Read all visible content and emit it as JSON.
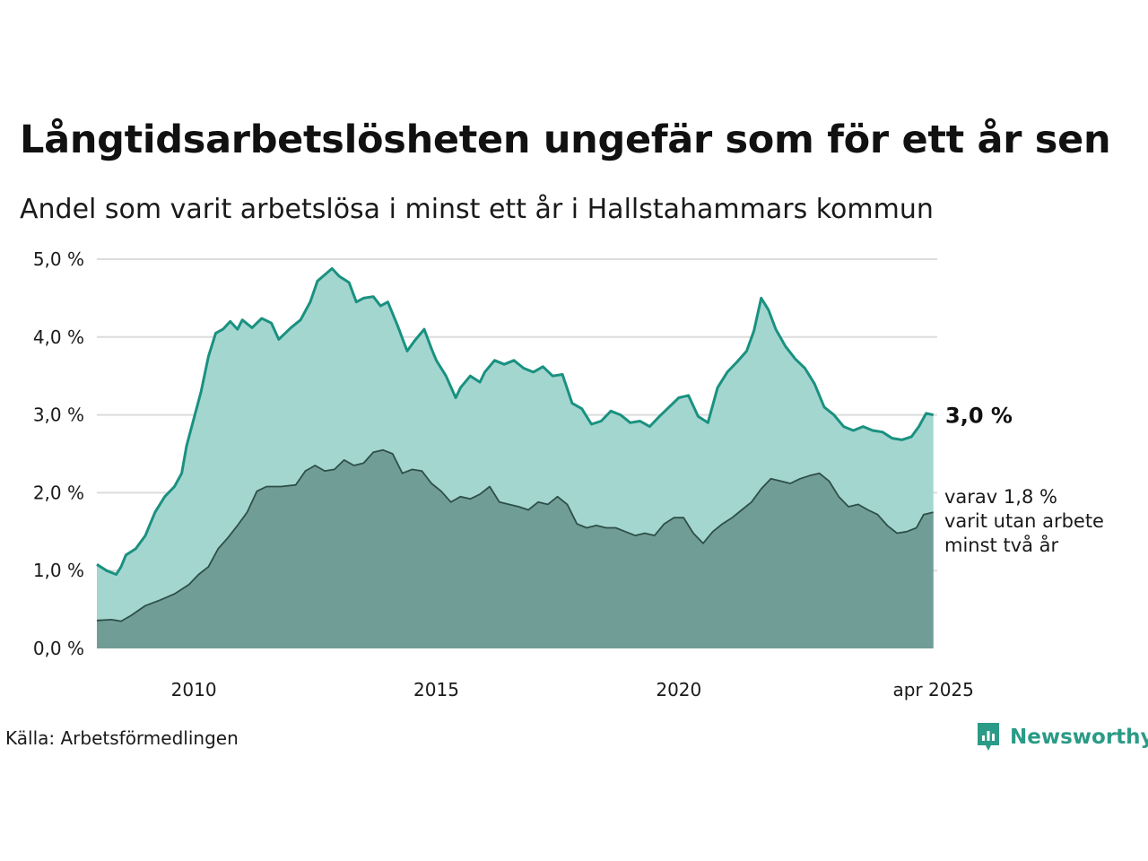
{
  "title": "Långtidsarbetslösheten ungefär som för ett år sen",
  "subtitle": "Andel som varit arbetslösa i minst ett år i Hallstahammars kommun",
  "source": "Källa: Arbetsförmedlingen",
  "brand": "Newsworthy",
  "colors": {
    "main_line": "#1a9180",
    "main_fill": "#a4d6d0",
    "sub_line": "#2e4f48",
    "sub_fill": "#719d97",
    "grid": "#dcdcdc",
    "brand": "#2a9b86"
  },
  "chart_data": {
    "type": "area",
    "xlim": [
      2008.0,
      2025.33
    ],
    "ylim": [
      0,
      5.0
    ],
    "grid": true,
    "y_ticks": [
      {
        "value": 0,
        "label": "0,0 %"
      },
      {
        "value": 1,
        "label": "1,0 %"
      },
      {
        "value": 2,
        "label": "2,0 %"
      },
      {
        "value": 3,
        "label": "3,0 %"
      },
      {
        "value": 4,
        "label": "4,0 %"
      },
      {
        "value": 5,
        "label": "5,0 %"
      }
    ],
    "x_ticks": [
      {
        "value": 2010,
        "label": "2010"
      },
      {
        "value": 2015,
        "label": "2015"
      },
      {
        "value": 2020,
        "label": "2020"
      },
      {
        "value": 2025.25,
        "label": "apr 2025"
      }
    ],
    "series": [
      {
        "key": "total",
        "end_label": "3,0 %",
        "points": [
          [
            2008.0,
            1.08
          ],
          [
            2008.2,
            1.0
          ],
          [
            2008.4,
            0.95
          ],
          [
            2008.5,
            1.05
          ],
          [
            2008.6,
            1.2
          ],
          [
            2008.8,
            1.28
          ],
          [
            2009.0,
            1.45
          ],
          [
            2009.2,
            1.75
          ],
          [
            2009.4,
            1.95
          ],
          [
            2009.6,
            2.08
          ],
          [
            2009.75,
            2.25
          ],
          [
            2009.85,
            2.6
          ],
          [
            2010.0,
            2.95
          ],
          [
            2010.15,
            3.3
          ],
          [
            2010.3,
            3.75
          ],
          [
            2010.45,
            4.05
          ],
          [
            2010.6,
            4.1
          ],
          [
            2010.75,
            4.2
          ],
          [
            2010.9,
            4.1
          ],
          [
            2011.0,
            4.22
          ],
          [
            2011.2,
            4.12
          ],
          [
            2011.4,
            4.24
          ],
          [
            2011.6,
            4.18
          ],
          [
            2011.75,
            3.97
          ],
          [
            2012.0,
            4.12
          ],
          [
            2012.2,
            4.22
          ],
          [
            2012.4,
            4.45
          ],
          [
            2012.55,
            4.72
          ],
          [
            2012.7,
            4.8
          ],
          [
            2012.85,
            4.88
          ],
          [
            2013.0,
            4.78
          ],
          [
            2013.2,
            4.7
          ],
          [
            2013.35,
            4.45
          ],
          [
            2013.5,
            4.5
          ],
          [
            2013.7,
            4.52
          ],
          [
            2013.85,
            4.4
          ],
          [
            2014.0,
            4.45
          ],
          [
            2014.2,
            4.15
          ],
          [
            2014.4,
            3.82
          ],
          [
            2014.55,
            3.95
          ],
          [
            2014.75,
            4.1
          ],
          [
            2014.9,
            3.85
          ],
          [
            2015.0,
            3.7
          ],
          [
            2015.2,
            3.5
          ],
          [
            2015.4,
            3.22
          ],
          [
            2015.5,
            3.35
          ],
          [
            2015.7,
            3.5
          ],
          [
            2015.9,
            3.42
          ],
          [
            2016.0,
            3.55
          ],
          [
            2016.2,
            3.7
          ],
          [
            2016.4,
            3.65
          ],
          [
            2016.6,
            3.7
          ],
          [
            2016.8,
            3.6
          ],
          [
            2017.0,
            3.55
          ],
          [
            2017.2,
            3.62
          ],
          [
            2017.4,
            3.5
          ],
          [
            2017.6,
            3.52
          ],
          [
            2017.8,
            3.15
          ],
          [
            2018.0,
            3.08
          ],
          [
            2018.2,
            2.88
          ],
          [
            2018.4,
            2.92
          ],
          [
            2018.6,
            3.05
          ],
          [
            2018.8,
            3.0
          ],
          [
            2019.0,
            2.9
          ],
          [
            2019.2,
            2.92
          ],
          [
            2019.4,
            2.85
          ],
          [
            2019.6,
            2.98
          ],
          [
            2019.8,
            3.1
          ],
          [
            2020.0,
            3.22
          ],
          [
            2020.2,
            3.25
          ],
          [
            2020.4,
            2.98
          ],
          [
            2020.6,
            2.9
          ],
          [
            2020.8,
            3.35
          ],
          [
            2021.0,
            3.55
          ],
          [
            2021.2,
            3.68
          ],
          [
            2021.4,
            3.82
          ],
          [
            2021.55,
            4.08
          ],
          [
            2021.7,
            4.5
          ],
          [
            2021.85,
            4.35
          ],
          [
            2022.0,
            4.1
          ],
          [
            2022.2,
            3.88
          ],
          [
            2022.4,
            3.72
          ],
          [
            2022.6,
            3.6
          ],
          [
            2022.8,
            3.4
          ],
          [
            2023.0,
            3.1
          ],
          [
            2023.2,
            3.0
          ],
          [
            2023.4,
            2.85
          ],
          [
            2023.6,
            2.8
          ],
          [
            2023.8,
            2.85
          ],
          [
            2024.0,
            2.8
          ],
          [
            2024.2,
            2.78
          ],
          [
            2024.4,
            2.7
          ],
          [
            2024.6,
            2.68
          ],
          [
            2024.8,
            2.72
          ],
          [
            2024.95,
            2.85
          ],
          [
            2025.1,
            3.02
          ],
          [
            2025.25,
            3.0
          ]
        ]
      },
      {
        "key": "minst_tva_ar",
        "end_label": "varav 1,8 %",
        "end_label_lines": [
          "varav 1,8 %",
          "varit utan arbete",
          "minst två år"
        ],
        "points": [
          [
            2008.0,
            0.36
          ],
          [
            2008.3,
            0.37
          ],
          [
            2008.5,
            0.35
          ],
          [
            2008.7,
            0.42
          ],
          [
            2009.0,
            0.55
          ],
          [
            2009.3,
            0.62
          ],
          [
            2009.6,
            0.7
          ],
          [
            2009.9,
            0.82
          ],
          [
            2010.1,
            0.95
          ],
          [
            2010.3,
            1.05
          ],
          [
            2010.5,
            1.28
          ],
          [
            2010.7,
            1.42
          ],
          [
            2010.9,
            1.58
          ],
          [
            2011.1,
            1.75
          ],
          [
            2011.3,
            2.02
          ],
          [
            2011.5,
            2.08
          ],
          [
            2011.8,
            2.08
          ],
          [
            2012.1,
            2.1
          ],
          [
            2012.3,
            2.28
          ],
          [
            2012.5,
            2.35
          ],
          [
            2012.7,
            2.28
          ],
          [
            2012.9,
            2.3
          ],
          [
            2013.1,
            2.42
          ],
          [
            2013.3,
            2.35
          ],
          [
            2013.5,
            2.38
          ],
          [
            2013.7,
            2.52
          ],
          [
            2013.9,
            2.55
          ],
          [
            2014.1,
            2.5
          ],
          [
            2014.3,
            2.25
          ],
          [
            2014.5,
            2.3
          ],
          [
            2014.7,
            2.28
          ],
          [
            2014.9,
            2.12
          ],
          [
            2015.1,
            2.02
          ],
          [
            2015.3,
            1.88
          ],
          [
            2015.5,
            1.95
          ],
          [
            2015.7,
            1.92
          ],
          [
            2015.9,
            1.98
          ],
          [
            2016.1,
            2.08
          ],
          [
            2016.3,
            1.88
          ],
          [
            2016.5,
            1.85
          ],
          [
            2016.7,
            1.82
          ],
          [
            2016.9,
            1.78
          ],
          [
            2017.1,
            1.88
          ],
          [
            2017.3,
            1.85
          ],
          [
            2017.5,
            1.95
          ],
          [
            2017.7,
            1.85
          ],
          [
            2017.9,
            1.6
          ],
          [
            2018.1,
            1.55
          ],
          [
            2018.3,
            1.58
          ],
          [
            2018.5,
            1.55
          ],
          [
            2018.7,
            1.55
          ],
          [
            2018.9,
            1.5
          ],
          [
            2019.1,
            1.45
          ],
          [
            2019.3,
            1.48
          ],
          [
            2019.5,
            1.45
          ],
          [
            2019.7,
            1.6
          ],
          [
            2019.9,
            1.68
          ],
          [
            2020.1,
            1.68
          ],
          [
            2020.3,
            1.48
          ],
          [
            2020.5,
            1.35
          ],
          [
            2020.7,
            1.5
          ],
          [
            2020.9,
            1.6
          ],
          [
            2021.1,
            1.68
          ],
          [
            2021.3,
            1.78
          ],
          [
            2021.5,
            1.88
          ],
          [
            2021.7,
            2.05
          ],
          [
            2021.9,
            2.18
          ],
          [
            2022.1,
            2.15
          ],
          [
            2022.3,
            2.12
          ],
          [
            2022.5,
            2.18
          ],
          [
            2022.7,
            2.22
          ],
          [
            2022.9,
            2.25
          ],
          [
            2023.1,
            2.15
          ],
          [
            2023.3,
            1.95
          ],
          [
            2023.5,
            1.82
          ],
          [
            2023.7,
            1.85
          ],
          [
            2023.9,
            1.78
          ],
          [
            2024.1,
            1.72
          ],
          [
            2024.3,
            1.58
          ],
          [
            2024.5,
            1.48
          ],
          [
            2024.7,
            1.5
          ],
          [
            2024.9,
            1.55
          ],
          [
            2025.05,
            1.72
          ],
          [
            2025.25,
            1.75
          ]
        ]
      }
    ]
  }
}
